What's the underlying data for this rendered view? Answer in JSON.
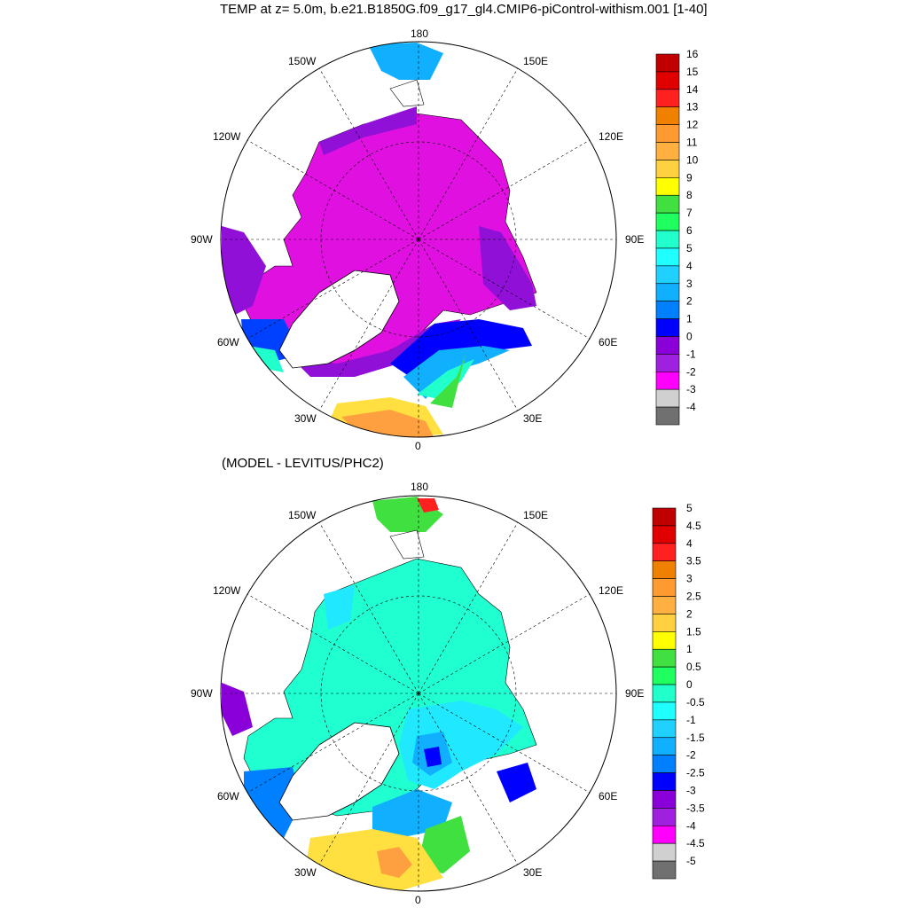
{
  "title": "TEMP at z=   5.0m, b.e21.B1850G.f09_g17_gl4.CMIP6-piControl-withism.001 [1-40]",
  "subtitle": "(MODEL - LEVITUS/PHC2)",
  "longitude_labels": {
    "top": "180",
    "bottom": "0",
    "left": "90W",
    "right": "90E",
    "ul1": "150W",
    "ul2": "120W",
    "ur1": "150E",
    "ur2": "120E",
    "ll1": "60W",
    "ll2": "30W",
    "lr1": "60E",
    "lr2": "30E"
  },
  "colorbar_top": {
    "labels": [
      "16",
      "15",
      "14",
      "13",
      "12",
      "11",
      "10",
      "9",
      "8",
      "7",
      "6",
      "5",
      "4",
      "3",
      "2",
      "1",
      "0",
      "-1",
      "-2",
      "-3",
      "-4"
    ],
    "colors": [
      "#c00000",
      "#e00000",
      "#ff2020",
      "#f08000",
      "#ff9a30",
      "#ffb040",
      "#ffd040",
      "#ffff00",
      "#40e040",
      "#20ff60",
      "#20ffcc",
      "#20ffff",
      "#20d0ff",
      "#10b0ff",
      "#0080ff",
      "#0000ff",
      "#8a00d8",
      "#a020e0",
      "#ff00ff",
      "#d0d0d0",
      "#707070"
    ]
  },
  "colorbar_bottom": {
    "labels": [
      "5",
      "4.5",
      "4",
      "3.5",
      "3",
      "2.5",
      "2",
      "1.5",
      "1",
      "0.5",
      "0",
      "-0.5",
      "-1",
      "-1.5",
      "-2",
      "-2.5",
      "-3",
      "-3.5",
      "-4",
      "-4.5",
      "-5"
    ],
    "colors": [
      "#c00000",
      "#e00000",
      "#ff2020",
      "#f08000",
      "#ff9a30",
      "#ffb040",
      "#ffd040",
      "#ffff00",
      "#40e040",
      "#20ff60",
      "#20ffcc",
      "#20ffff",
      "#20d0ff",
      "#10b0ff",
      "#0080ff",
      "#0000ff",
      "#8a00d8",
      "#a020e0",
      "#ff00ff",
      "#d0d0d0",
      "#707070"
    ]
  },
  "colors": {
    "ice_magenta": "#e010e0",
    "shelf_purple": "#9010d8",
    "cyan_field": "#20ffd0",
    "light_blue": "#20e8ff",
    "blue": "#0040ff",
    "green": "#40e040",
    "yellow": "#ffe040",
    "orange": "#ffa040"
  }
}
